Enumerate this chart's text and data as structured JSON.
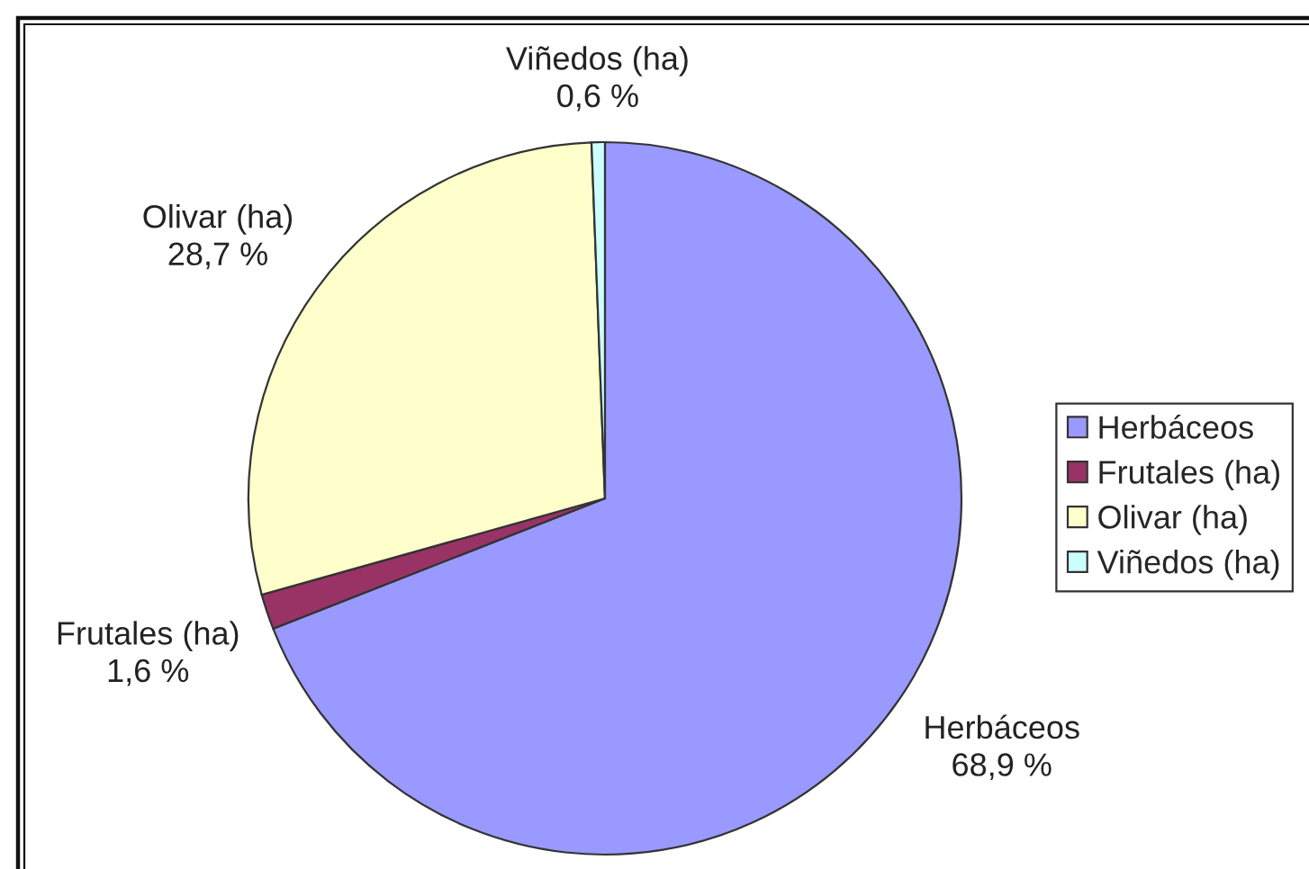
{
  "chart_data": {
    "type": "pie",
    "categories": [
      "Herbáceos",
      "Frutales (ha)",
      "Olivar (ha)",
      "Viñedos (ha)"
    ],
    "values": [
      68.9,
      1.6,
      28.7,
      0.6
    ],
    "value_labels": [
      "68,9 %",
      "1,6 %",
      "28,7 %",
      "0,6 %"
    ],
    "colors": [
      "#9999ff",
      "#993366",
      "#ffffcc",
      "#ccffff"
    ],
    "legend": "right"
  }
}
